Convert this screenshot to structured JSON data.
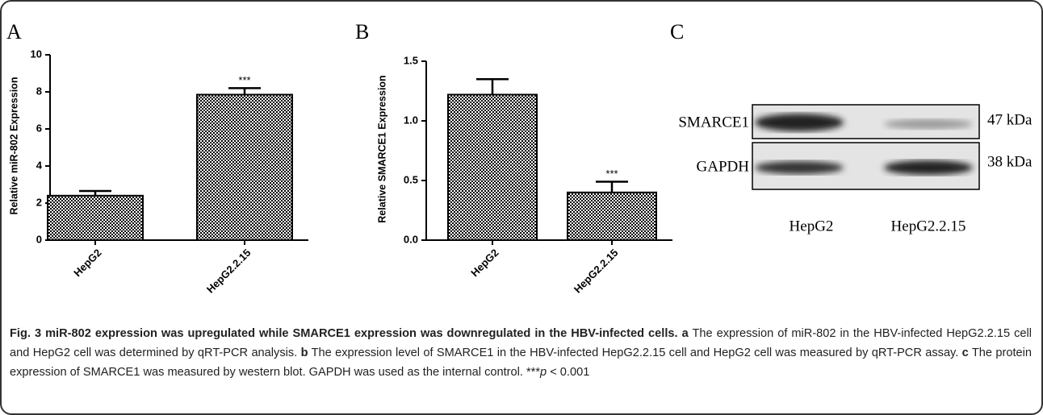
{
  "chart_data": [
    {
      "type": "bar",
      "panel": "A",
      "ylabel": "Relative miR-802 Expression",
      "categories": [
        "HepG2",
        "HepG2.2.15"
      ],
      "values": [
        2.4,
        7.85
      ],
      "errors": [
        0.25,
        0.35
      ],
      "value_annotations": [
        null,
        "***"
      ],
      "ylim": [
        0,
        10
      ],
      "yticks": [
        0,
        2,
        4,
        6,
        8,
        10
      ]
    },
    {
      "type": "bar",
      "panel": "B",
      "ylabel": "Relative SMARCE1  Expression",
      "categories": [
        "HepG2",
        "HepG2.2.15"
      ],
      "values": [
        1.22,
        0.4
      ],
      "errors": [
        0.13,
        0.09
      ],
      "value_annotations": [
        null,
        "***"
      ],
      "ylim": [
        0,
        1.5
      ],
      "yticks": [
        {
          "value": 0,
          "label": "0.0"
        },
        0.5,
        {
          "value": 1,
          "label": "1.0"
        },
        1.5
      ]
    }
  ],
  "blot": {
    "panel": "C",
    "rows": [
      {
        "label": "SMARCE1",
        "size": "47 kDa"
      },
      {
        "label": "GAPDH",
        "size": "38 kDa"
      }
    ],
    "lanes": [
      "HepG2",
      "HepG2.2.15"
    ]
  },
  "caption": {
    "title": "Fig. 3 miR-802 expression was upregulated while SMARCE1 expression was downregulated in the HBV-infected cells.",
    "parts": [
      {
        "label": "a",
        "text": "The expression of miR-802 in the HBV-infected HepG2.2.15 cell and HepG2 cell was determined by qRT-PCR analysis."
      },
      {
        "label": "b",
        "text": "The expression level of SMARCE1 in the HBV-infected HepG2.2.15 cell and HepG2 cell was measured by qRT-PCR assay."
      },
      {
        "label": "c",
        "text": "The protein expression of SMARCE1 was measured by western blot. GAPDH was used as the internal control."
      }
    ],
    "footnote_mark": "***",
    "footnote_symbol": "p",
    "footnote_text": " < 0.001"
  }
}
